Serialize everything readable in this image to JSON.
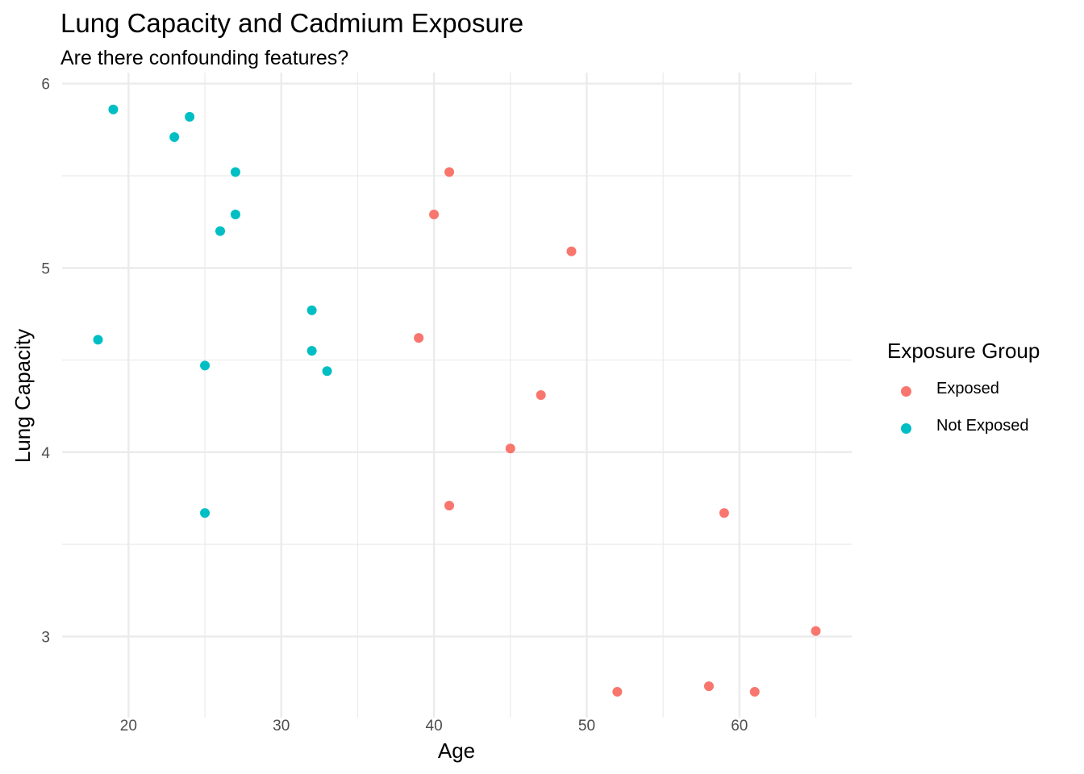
{
  "chart_data": {
    "type": "scatter",
    "title": "Lung Capacity and Cadmium Exposure",
    "subtitle": "Are there confounding features?",
    "xlabel": "Age",
    "ylabel": "Lung Capacity",
    "xlim": [
      15.65,
      67.35
    ],
    "ylim": [
      2.56,
      6.06
    ],
    "x_ticks": [
      20,
      30,
      40,
      50,
      60
    ],
    "y_ticks": [
      3,
      4,
      5,
      6
    ],
    "x_tick_labels": [
      "20",
      "30",
      "40",
      "50",
      "60"
    ],
    "y_tick_labels": [
      "3",
      "4",
      "5",
      "6"
    ],
    "grid": true,
    "legend_title": "Exposure Group",
    "legend_position": "right",
    "series": [
      {
        "name": "Exposed",
        "color": "#F8766D",
        "points": [
          {
            "x": 41,
            "y": 5.52
          },
          {
            "x": 40,
            "y": 5.29
          },
          {
            "x": 49,
            "y": 5.09
          },
          {
            "x": 39,
            "y": 4.62
          },
          {
            "x": 47,
            "y": 4.31
          },
          {
            "x": 45,
            "y": 4.02
          },
          {
            "x": 41,
            "y": 3.71
          },
          {
            "x": 59,
            "y": 3.67
          },
          {
            "x": 65,
            "y": 3.03
          },
          {
            "x": 52,
            "y": 2.7
          },
          {
            "x": 58,
            "y": 2.73
          },
          {
            "x": 61,
            "y": 2.7
          }
        ]
      },
      {
        "name": "Not Exposed",
        "color": "#00BFC4",
        "points": [
          {
            "x": 19,
            "y": 5.86
          },
          {
            "x": 24,
            "y": 5.82
          },
          {
            "x": 23,
            "y": 5.71
          },
          {
            "x": 27,
            "y": 5.52
          },
          {
            "x": 27,
            "y": 5.29
          },
          {
            "x": 26,
            "y": 5.2
          },
          {
            "x": 32,
            "y": 4.77
          },
          {
            "x": 18,
            "y": 4.61
          },
          {
            "x": 32,
            "y": 4.55
          },
          {
            "x": 25,
            "y": 4.47
          },
          {
            "x": 33,
            "y": 4.44
          },
          {
            "x": 25,
            "y": 3.67
          }
        ]
      }
    ]
  }
}
